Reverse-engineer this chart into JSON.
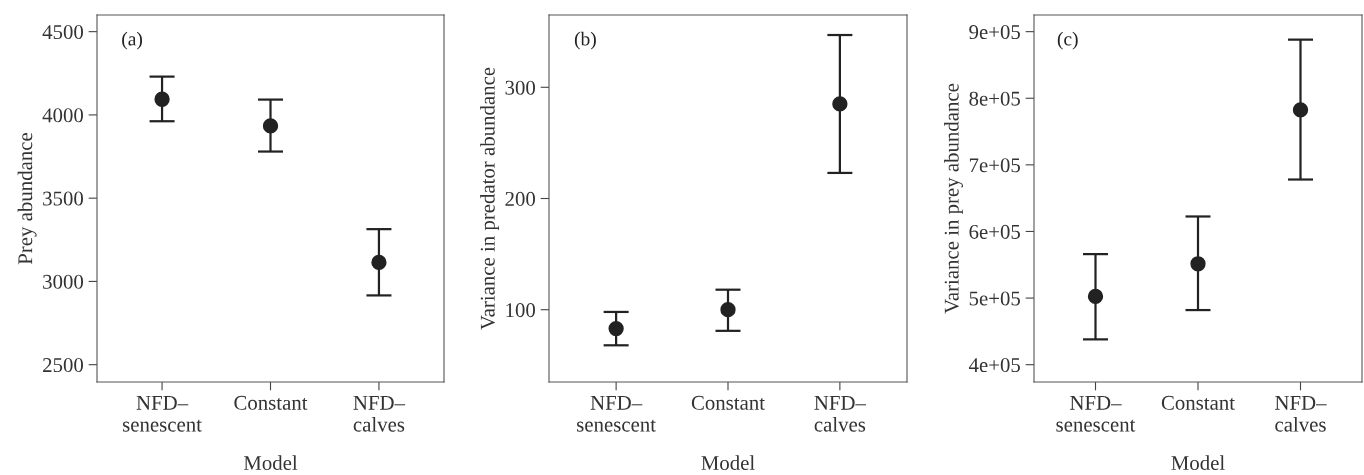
{
  "chart_data": [
    {
      "type": "scatter",
      "categories": [
        "NFD–\nsenescent",
        "Constant",
        "NFD–\ncalves"
      ],
      "values": [
        4094,
        3934,
        3114
      ],
      "errors": [
        [
          3962,
          4230
        ],
        [
          3780,
          4092
        ],
        [
          2916,
          3314
        ]
      ],
      "color": "#222222",
      "marker": "circle",
      "xlabel": "Model",
      "ylabel": "Prey abundance",
      "ylim": [
        2396,
        4600
      ],
      "yticks": [
        2500,
        3000,
        3500,
        4000,
        4500
      ],
      "annotations": [
        "(a)"
      ],
      "grid": false,
      "legend": false
    },
    {
      "type": "scatter",
      "categories": [
        "NFD–\nsenescent",
        "Constant",
        "NFD–\ncalves"
      ],
      "values": [
        83,
        100,
        285
      ],
      "errors": [
        [
          68,
          98
        ],
        [
          81,
          118
        ],
        [
          223,
          347
        ]
      ],
      "color": "#222222",
      "marker": "circle",
      "xlabel": "Model",
      "ylabel": "Variance in predator abundance",
      "ylim": [
        35,
        365
      ],
      "yticks": [
        100,
        200,
        300
      ],
      "annotations": [
        "(b)"
      ],
      "grid": false,
      "legend": false
    },
    {
      "type": "scatter",
      "categories": [
        "NFD–\nsenescent",
        "Constant",
        "NFD–\ncalves"
      ],
      "values": [
        502500,
        551500,
        782500
      ],
      "errors": [
        [
          438000,
          566000
        ],
        [
          482000,
          622500
        ],
        [
          678000,
          888000
        ]
      ],
      "color": "#222222",
      "marker": "circle",
      "xlabel": "Model",
      "ylabel": "Variance in prey abundance",
      "ylim": [
        374000,
        925000
      ],
      "yticks": [
        {
          "value": 400000,
          "label": "4e+05"
        },
        {
          "value": 500000,
          "label": "5e+05"
        },
        {
          "value": 600000,
          "label": "6e+05"
        },
        {
          "value": 700000,
          "label": "7e+05"
        },
        {
          "value": 800000,
          "label": "8e+05"
        },
        {
          "value": 900000,
          "label": "9e+05"
        }
      ],
      "annotations": [
        "(c)"
      ],
      "grid": false,
      "legend": false
    }
  ]
}
